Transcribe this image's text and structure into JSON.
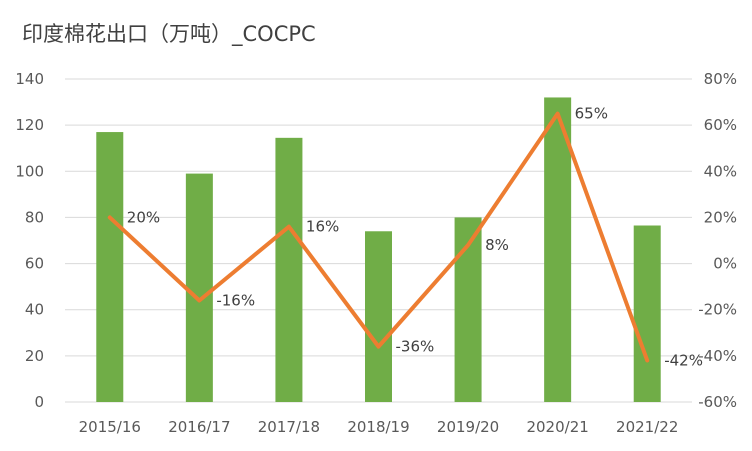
{
  "chart_data": {
    "type": "bar",
    "title": "印度棉花出口（万吨）_COCPC",
    "categories": [
      "2015/16",
      "2016/17",
      "2017/18",
      "2018/19",
      "2019/20",
      "2020/21",
      "2021/22"
    ],
    "series": [
      {
        "kind": "bar",
        "axis": "left",
        "color": "#70AD47",
        "values": [
          117,
          99,
          114.5,
          74,
          80,
          132,
          76.5
        ]
      },
      {
        "kind": "line",
        "axis": "right",
        "color": "#ED7D31",
        "values": [
          20,
          -16,
          16,
          -36,
          8,
          65,
          -42
        ],
        "labels": [
          "20%",
          "-16%",
          "16%",
          "-36%",
          "8%",
          "65%",
          "-42%"
        ]
      }
    ],
    "y_left": {
      "min": 0,
      "max": 140,
      "ticks": [
        "0",
        "20",
        "40",
        "60",
        "80",
        "100",
        "120",
        "140"
      ]
    },
    "y_right": {
      "min": -60,
      "max": 80,
      "ticks": [
        "-60%",
        "-40%",
        "-20%",
        "0%",
        "20%",
        "40%",
        "60%",
        "80%"
      ]
    },
    "grid": true,
    "legend": "none"
  }
}
